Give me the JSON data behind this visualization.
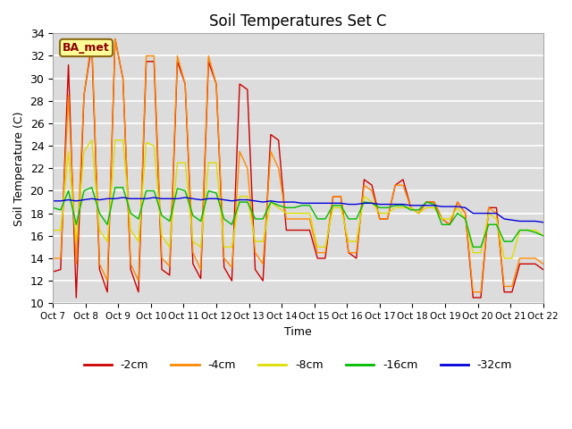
{
  "title": "Soil Temperatures Set C",
  "xlabel": "Time",
  "ylabel": "Soil Temperature (C)",
  "ylim": [
    10,
    34
  ],
  "yticks": [
    10,
    12,
    14,
    16,
    18,
    20,
    22,
    24,
    26,
    28,
    30,
    32,
    34
  ],
  "annotation": "BA_met",
  "bg_color": "#dcdcdc",
  "colors": {
    "-2cm": "#cc0000",
    "-4cm": "#ff8800",
    "-8cm": "#dddd00",
    "-16cm": "#00bb00",
    "-32cm": "#0000dd"
  },
  "x_tick_labels": [
    "Oct 7",
    "Oct 8",
    "Oct 9",
    "Oct 10",
    "Oct 11",
    "Oct 12",
    "Oct 13",
    "Oct 14",
    "Oct 15",
    "Oct 16",
    "Oct 17",
    "Oct 18",
    "Oct 19",
    "Oct 20",
    "Oct 21",
    "Oct 22"
  ],
  "series": {
    "-2cm": [
      12.8,
      13.0,
      31.2,
      10.5,
      28.5,
      33.0,
      13.0,
      11.0,
      33.5,
      30.0,
      13.0,
      11.0,
      31.5,
      31.5,
      13.0,
      12.5,
      31.5,
      29.5,
      13.5,
      12.2,
      31.5,
      29.5,
      13.2,
      12.0,
      29.5,
      29.0,
      13.0,
      12.0,
      25.0,
      24.5,
      16.5,
      16.5,
      16.5,
      16.5,
      14.0,
      14.0,
      19.5,
      19.5,
      14.5,
      14.0,
      21.0,
      20.5,
      17.5,
      17.5,
      20.5,
      21.0,
      18.5,
      18.0,
      19.0,
      19.0,
      17.5,
      17.0,
      19.0,
      18.0,
      10.5,
      10.5,
      18.5,
      18.5,
      11.0,
      11.0,
      13.5,
      13.5,
      13.5,
      13.0
    ],
    "-4cm": [
      14.0,
      14.0,
      28.5,
      13.5,
      28.5,
      33.5,
      13.5,
      12.0,
      33.5,
      30.0,
      13.5,
      12.0,
      32.0,
      32.0,
      14.0,
      13.3,
      32.0,
      29.5,
      14.5,
      13.0,
      32.0,
      29.5,
      14.0,
      13.2,
      23.5,
      22.0,
      14.5,
      13.5,
      23.5,
      22.0,
      17.5,
      17.5,
      17.5,
      17.5,
      14.5,
      14.5,
      19.5,
      19.5,
      14.5,
      14.5,
      20.5,
      20.0,
      17.5,
      17.5,
      20.5,
      20.5,
      18.5,
      18.0,
      19.0,
      19.0,
      17.5,
      17.0,
      19.0,
      18.0,
      11.0,
      11.0,
      18.5,
      18.0,
      11.5,
      11.5,
      14.0,
      14.0,
      14.0,
      13.5
    ],
    "-8cm": [
      16.5,
      16.5,
      23.5,
      15.5,
      23.5,
      24.5,
      16.5,
      15.5,
      24.5,
      24.5,
      16.5,
      15.5,
      24.3,
      24.0,
      16.0,
      15.0,
      22.5,
      22.5,
      15.5,
      15.0,
      22.5,
      22.5,
      15.0,
      15.0,
      19.5,
      19.5,
      15.5,
      15.5,
      19.0,
      18.5,
      18.0,
      18.0,
      18.0,
      18.0,
      15.0,
      15.0,
      18.5,
      18.5,
      15.5,
      15.5,
      19.5,
      19.0,
      18.0,
      18.0,
      18.5,
      18.5,
      18.5,
      18.0,
      18.5,
      18.5,
      17.5,
      17.5,
      18.5,
      17.5,
      14.5,
      14.5,
      18.0,
      17.5,
      14.0,
      14.0,
      16.5,
      16.5,
      16.5,
      16.0
    ],
    "-16cm": [
      18.5,
      18.3,
      20.0,
      17.0,
      20.0,
      20.3,
      18.0,
      17.0,
      20.3,
      20.3,
      18.0,
      17.5,
      20.0,
      20.0,
      17.8,
      17.3,
      20.2,
      20.0,
      17.8,
      17.3,
      20.0,
      19.8,
      17.5,
      17.0,
      19.0,
      19.0,
      17.5,
      17.5,
      19.0,
      18.7,
      18.5,
      18.5,
      18.7,
      18.7,
      17.5,
      17.5,
      18.7,
      18.7,
      17.5,
      17.5,
      19.0,
      18.9,
      18.5,
      18.5,
      18.7,
      18.7,
      18.3,
      18.3,
      19.0,
      18.8,
      17.0,
      17.0,
      18.0,
      17.5,
      15.0,
      15.0,
      17.0,
      17.0,
      15.5,
      15.5,
      16.5,
      16.5,
      16.3,
      16.0
    ],
    "-32cm": [
      19.1,
      19.1,
      19.2,
      19.1,
      19.2,
      19.3,
      19.2,
      19.3,
      19.3,
      19.4,
      19.3,
      19.3,
      19.3,
      19.4,
      19.3,
      19.3,
      19.3,
      19.4,
      19.3,
      19.2,
      19.3,
      19.3,
      19.2,
      19.1,
      19.2,
      19.2,
      19.1,
      19.0,
      19.1,
      19.0,
      19.0,
      19.0,
      18.9,
      18.9,
      18.9,
      18.9,
      18.9,
      18.9,
      18.8,
      18.8,
      18.9,
      18.9,
      18.8,
      18.8,
      18.8,
      18.8,
      18.7,
      18.7,
      18.7,
      18.7,
      18.6,
      18.6,
      18.6,
      18.5,
      18.0,
      18.0,
      18.0,
      18.0,
      17.5,
      17.4,
      17.3,
      17.3,
      17.3,
      17.2
    ]
  }
}
